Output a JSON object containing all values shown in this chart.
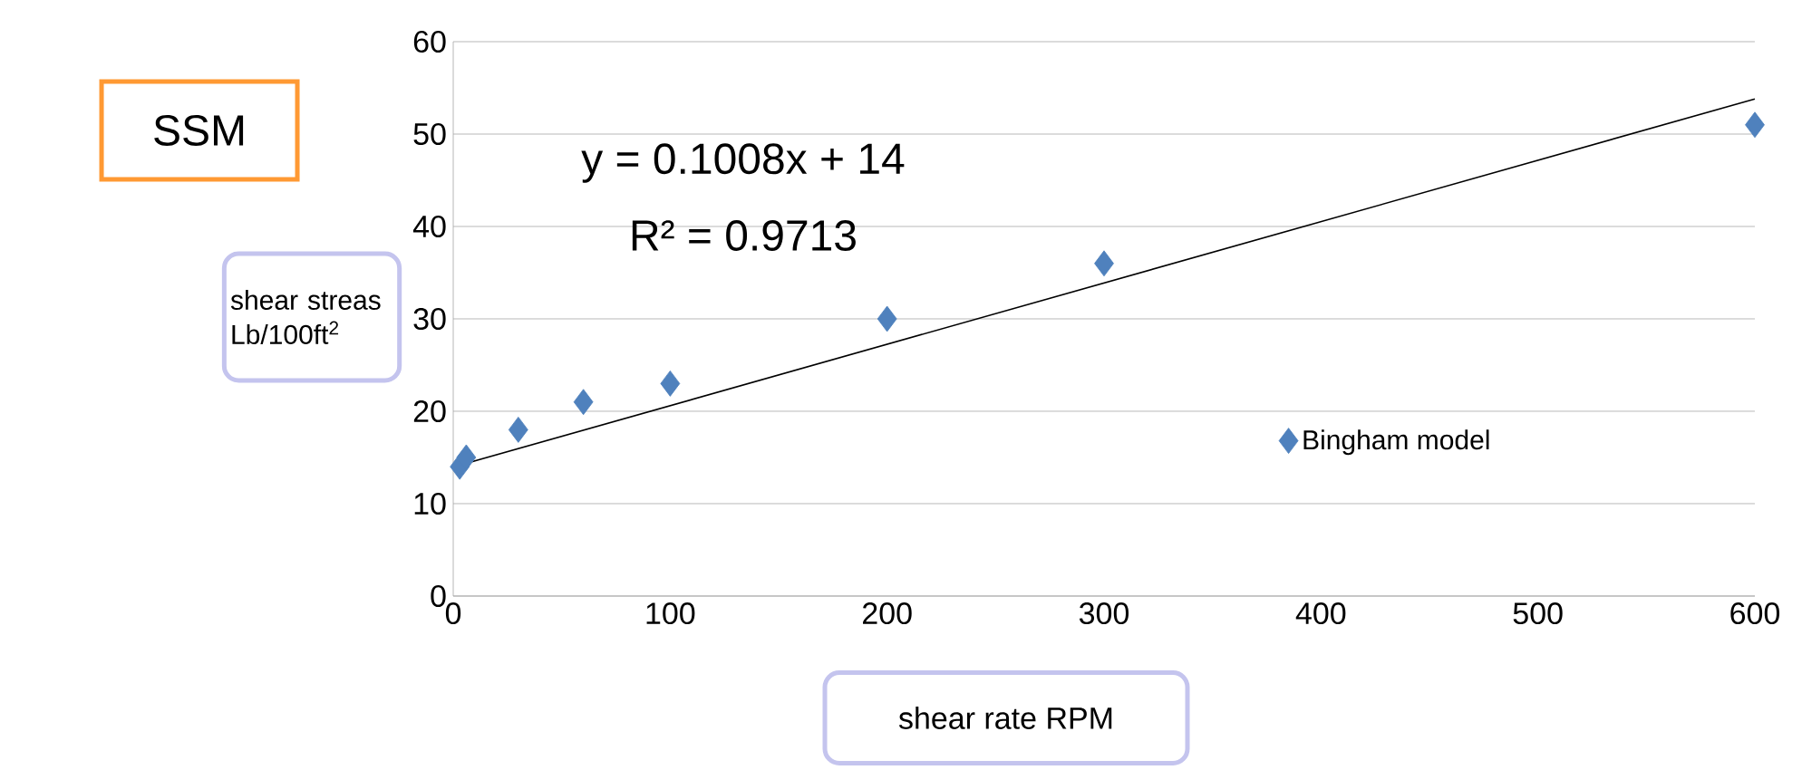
{
  "chart_data": {
    "type": "scatter",
    "xlabel": "shear rate RPM",
    "ylabel": "shear streas Lb/100ft$^{2}$",
    "annotations": [
      "SSM",
      "y = 0.1008x + 14",
      "R² = 0.9713"
    ],
    "xlim": [
      0,
      600
    ],
    "ylim": [
      0,
      60
    ],
    "xticks": [
      0,
      100,
      200,
      300,
      400,
      500,
      600
    ],
    "yticks": [
      0,
      10,
      20,
      30,
      40,
      50,
      60
    ],
    "grid": "y",
    "legend": "right",
    "series": [
      {
        "name": "Bingham model",
        "color": "#4f81bd",
        "marker": "diamond",
        "x": [
          3,
          6,
          30,
          60,
          100,
          200,
          300,
          600
        ],
        "values": [
          14,
          15,
          18,
          21,
          23,
          30,
          36,
          51
        ]
      },
      {
        "type": "line",
        "color": "#000000",
        "x": [
          5,
          600
        ],
        "values": [
          14.3,
          53.8
        ]
      }
    ]
  }
}
